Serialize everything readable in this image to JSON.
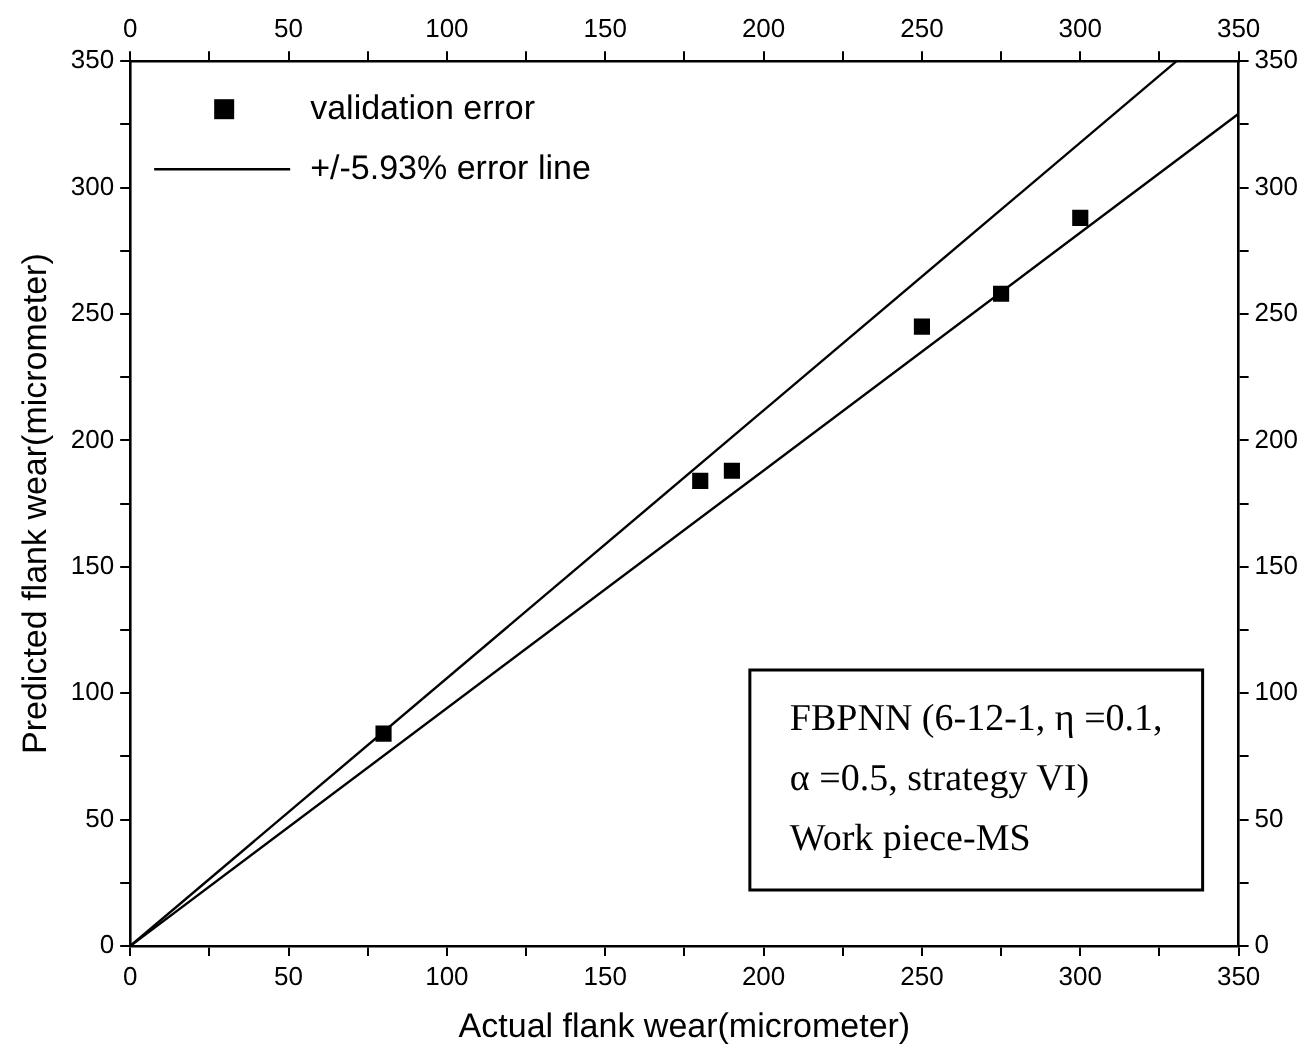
{
  "chart_data": {
    "type": "scatter",
    "xlabel": "Actual flank wear(micrometer)",
    "ylabel": "Predicted flank wear(micrometer)",
    "xlim": [
      0,
      350
    ],
    "xticks": [
      0,
      {
        "value": 25,
        "label": null
      },
      50,
      {
        "value": 75,
        "label": null
      },
      100,
      {
        "value": 125,
        "label": null
      },
      150,
      {
        "value": 175,
        "label": null
      },
      200,
      {
        "value": 225,
        "label": null
      },
      250,
      {
        "value": 275,
        "label": null
      },
      300,
      {
        "value": 325,
        "label": null
      },
      350
    ],
    "x2lim": [
      0,
      350
    ],
    "x2ticks": [
      0,
      {
        "value": 25,
        "label": null
      },
      50,
      {
        "value": 75,
        "label": null
      },
      100,
      {
        "value": 125,
        "label": null
      },
      150,
      {
        "value": 175,
        "label": null
      },
      200,
      {
        "value": 225,
        "label": null
      },
      250,
      {
        "value": 275,
        "label": null
      },
      300,
      {
        "value": 325,
        "label": null
      },
      350
    ],
    "ylim": [
      0,
      350
    ],
    "yticks": [
      0,
      {
        "value": 25,
        "label": null
      },
      50,
      {
        "value": 75,
        "label": null
      },
      100,
      {
        "value": 125,
        "label": null
      },
      150,
      {
        "value": 175,
        "label": null
      },
      200,
      {
        "value": 225,
        "label": null
      },
      250,
      {
        "value": 275,
        "label": null
      },
      300,
      {
        "value": 325,
        "label": null
      },
      350
    ],
    "y2lim": [
      0,
      350
    ],
    "y2ticks": [
      0,
      {
        "value": 25,
        "label": null
      },
      50,
      {
        "value": 75,
        "label": null
      },
      100,
      {
        "value": 125,
        "label": null
      },
      150,
      {
        "value": 175,
        "label": null
      },
      200,
      {
        "value": 225,
        "label": null
      },
      250,
      {
        "value": 275,
        "label": null
      },
      300,
      {
        "value": 325,
        "label": null
      },
      350
    ],
    "grid": false,
    "legend": "top left",
    "series": [
      {
        "name": "validation error",
        "marker": "square",
        "color": "#000000",
        "x": [
          80,
          180,
          190,
          250,
          275,
          300
        ],
        "values": [
          84,
          184,
          188,
          245,
          258,
          288
        ]
      },
      {
        "name": "+/-5.93% error line",
        "type": "line",
        "marker": "none",
        "color": "#000000",
        "x": [
          0,
          330.4
        ],
        "values": [
          0,
          350
        ]
      },
      {
        "type": "line",
        "marker": "none",
        "color": "#000000",
        "x": [
          0,
          350
        ],
        "values": [
          0,
          329.2
        ]
      }
    ],
    "annotations": [
      "FBPNN (6-12-1, η =0.1,\nα =0.5, strategy VI)\nWork piece-MS"
    ]
  }
}
